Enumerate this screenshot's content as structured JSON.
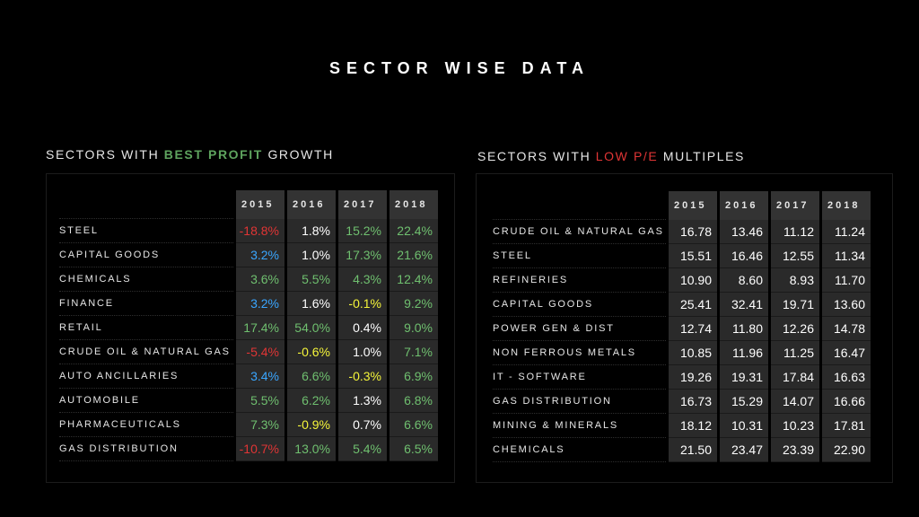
{
  "page": {
    "title": "SECTOR WISE DATA"
  },
  "left": {
    "title_prefix": "SECTORS WITH ",
    "title_highlight": "BEST PROFIT",
    "title_suffix": " GROWTH",
    "highlight_color": "#5ea35e",
    "years": [
      "2015",
      "2016",
      "2017",
      "2018"
    ],
    "rows": [
      {
        "label": "STEEL",
        "values": [
          "-18.8%",
          "1.8%",
          "15.2%",
          "22.4%"
        ],
        "colors": [
          "#e03535",
          "#ffffff",
          "#6fbf6f",
          "#6fbf6f"
        ]
      },
      {
        "label": "CAPITAL GOODS",
        "values": [
          "3.2%",
          "1.0%",
          "17.3%",
          "21.6%"
        ],
        "colors": [
          "#3aa6ff",
          "#ffffff",
          "#6fbf6f",
          "#6fbf6f"
        ]
      },
      {
        "label": "CHEMICALS",
        "values": [
          "3.6%",
          "5.5%",
          "4.3%",
          "12.4%"
        ],
        "colors": [
          "#6fbf6f",
          "#6fbf6f",
          "#6fbf6f",
          "#6fbf6f"
        ]
      },
      {
        "label": "FINANCE",
        "values": [
          "3.2%",
          "1.6%",
          "-0.1%",
          "9.2%"
        ],
        "colors": [
          "#3aa6ff",
          "#ffffff",
          "#f5f53a",
          "#6fbf6f"
        ]
      },
      {
        "label": "RETAIL",
        "values": [
          "17.4%",
          "54.0%",
          "0.4%",
          "9.0%"
        ],
        "colors": [
          "#6fbf6f",
          "#6fbf6f",
          "#ffffff",
          "#6fbf6f"
        ]
      },
      {
        "label": "CRUDE OIL & NATURAL GAS",
        "values": [
          "-5.4%",
          "-0.6%",
          "1.0%",
          "7.1%"
        ],
        "colors": [
          "#e03535",
          "#f5f53a",
          "#ffffff",
          "#6fbf6f"
        ]
      },
      {
        "label": "AUTO ANCILLARIES",
        "values": [
          "3.4%",
          "6.6%",
          "-0.3%",
          "6.9%"
        ],
        "colors": [
          "#3aa6ff",
          "#6fbf6f",
          "#f5f53a",
          "#6fbf6f"
        ]
      },
      {
        "label": "AUTOMOBILE",
        "values": [
          "5.5%",
          "6.2%",
          "1.3%",
          "6.8%"
        ],
        "colors": [
          "#6fbf6f",
          "#6fbf6f",
          "#ffffff",
          "#6fbf6f"
        ]
      },
      {
        "label": "PHARMACEUTICALS",
        "values": [
          "7.3%",
          "-0.9%",
          "0.7%",
          "6.6%"
        ],
        "colors": [
          "#6fbf6f",
          "#f5f53a",
          "#ffffff",
          "#6fbf6f"
        ]
      },
      {
        "label": "GAS DISTRIBUTION",
        "values": [
          "-10.7%",
          "13.0%",
          "5.4%",
          "6.5%"
        ],
        "colors": [
          "#e03535",
          "#6fbf6f",
          "#6fbf6f",
          "#6fbf6f"
        ]
      }
    ]
  },
  "right": {
    "title_prefix": "SECTORS WITH ",
    "title_highlight": "LOW P/E",
    "title_suffix": " MULTIPLES",
    "highlight_color": "#e03535",
    "years": [
      "2015",
      "2016",
      "2017",
      "2018"
    ],
    "rows": [
      {
        "label": "CRUDE OIL & NATURAL GAS",
        "values": [
          "16.78",
          "13.46",
          "11.12",
          "11.24"
        ]
      },
      {
        "label": "STEEL",
        "values": [
          "15.51",
          "16.46",
          "12.55",
          "11.34"
        ]
      },
      {
        "label": "REFINERIES",
        "values": [
          "10.90",
          "8.60",
          "8.93",
          "11.70"
        ]
      },
      {
        "label": "CAPITAL GOODS",
        "values": [
          "25.41",
          "32.41",
          "19.71",
          "13.60"
        ]
      },
      {
        "label": "POWER GEN & DIST",
        "values": [
          "12.74",
          "11.80",
          "12.26",
          "14.78"
        ]
      },
      {
        "label": "NON FERROUS METALS",
        "values": [
          "10.85",
          "11.96",
          "11.25",
          "16.47"
        ]
      },
      {
        "label": "IT - SOFTWARE",
        "values": [
          "19.26",
          "19.31",
          "17.84",
          "16.63"
        ]
      },
      {
        "label": "GAS DISTRIBUTION",
        "values": [
          "16.73",
          "15.29",
          "14.07",
          "16.66"
        ]
      },
      {
        "label": "MINING & MINERALS",
        "values": [
          "18.12",
          "10.31",
          "10.23",
          "17.81"
        ]
      },
      {
        "label": "CHEMICALS",
        "values": [
          "21.50",
          "23.47",
          "23.39",
          "22.90"
        ]
      }
    ]
  }
}
